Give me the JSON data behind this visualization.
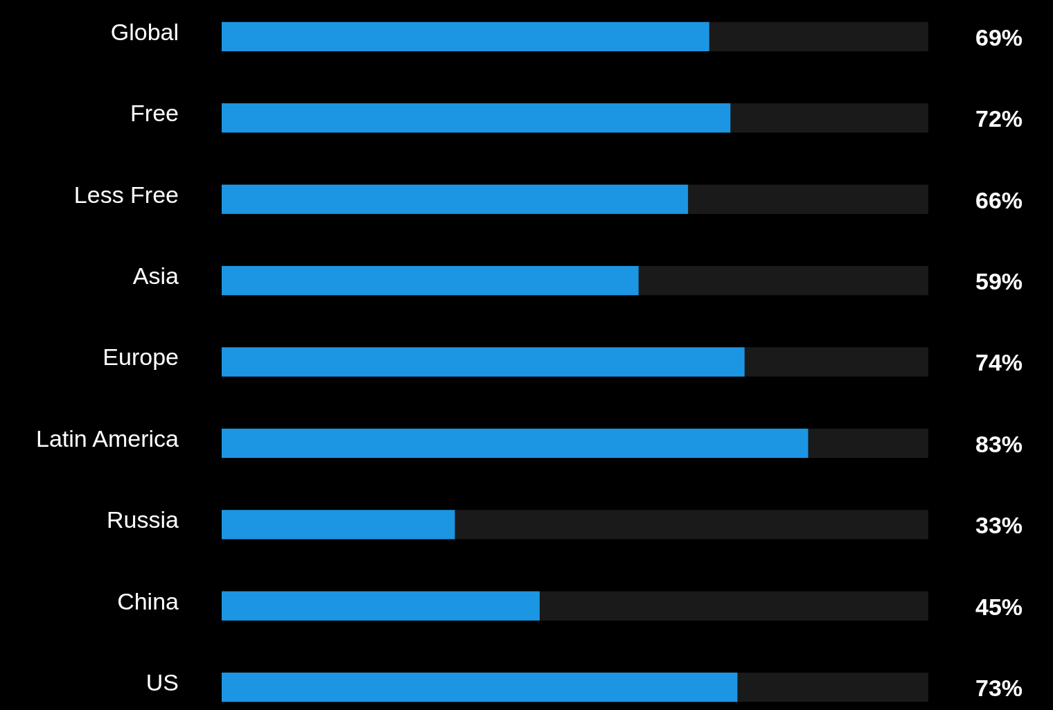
{
  "chart_data": {
    "type": "bar",
    "orientation": "horizontal",
    "categories": [
      "Global",
      "Free",
      "Less Free",
      "Asia",
      "Europe",
      "Latin America",
      "Russia",
      "China",
      "US"
    ],
    "values": [
      69,
      72,
      66,
      59,
      74,
      83,
      33,
      45,
      73
    ],
    "value_labels": [
      "69%",
      "72%",
      "66%",
      "59%",
      "74%",
      "83%",
      "33%",
      "45%",
      "73%"
    ],
    "color": "#1c96e2",
    "xlim": [
      0,
      100
    ],
    "tick_labels": "y"
  }
}
